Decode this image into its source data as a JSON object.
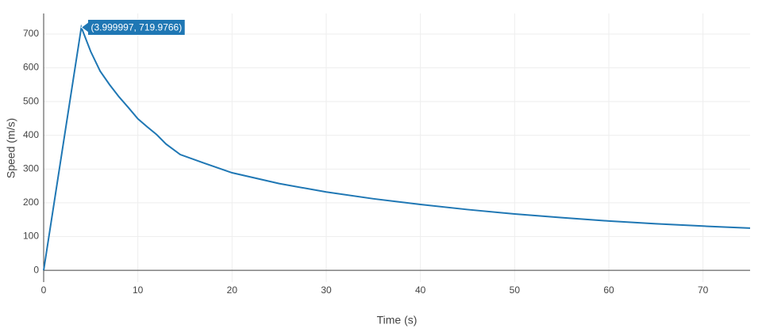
{
  "chart_data": {
    "type": "line",
    "x_label": "Time (s)",
    "y_label": "Speed (m/s)",
    "annotation": "(3.999997, 719.9766)",
    "x": [
      0,
      4,
      5,
      6,
      7,
      8,
      9,
      10,
      11,
      12,
      13,
      14.5,
      17,
      20,
      25,
      30,
      35,
      40,
      45,
      50,
      55,
      60,
      65,
      70,
      75
    ],
    "series": [
      {
        "name": "Speed",
        "color": "#1f77b4",
        "values": [
          0,
          719.9766,
          648,
          590,
          550,
          514,
          482,
          449,
          425,
          402,
          374,
          343,
          318,
          289,
          257,
          232,
          212,
          195,
          180,
          167,
          156,
          146,
          138,
          131,
          125
        ]
      }
    ],
    "xlim": [
      0,
      75
    ],
    "xticks": [
      0,
      10,
      20,
      30,
      40,
      50,
      60,
      70
    ],
    "ylim": [
      -35,
      761
    ],
    "yticks": [
      0,
      100,
      200,
      300,
      400,
      500,
      600,
      700
    ],
    "grid": true
  }
}
